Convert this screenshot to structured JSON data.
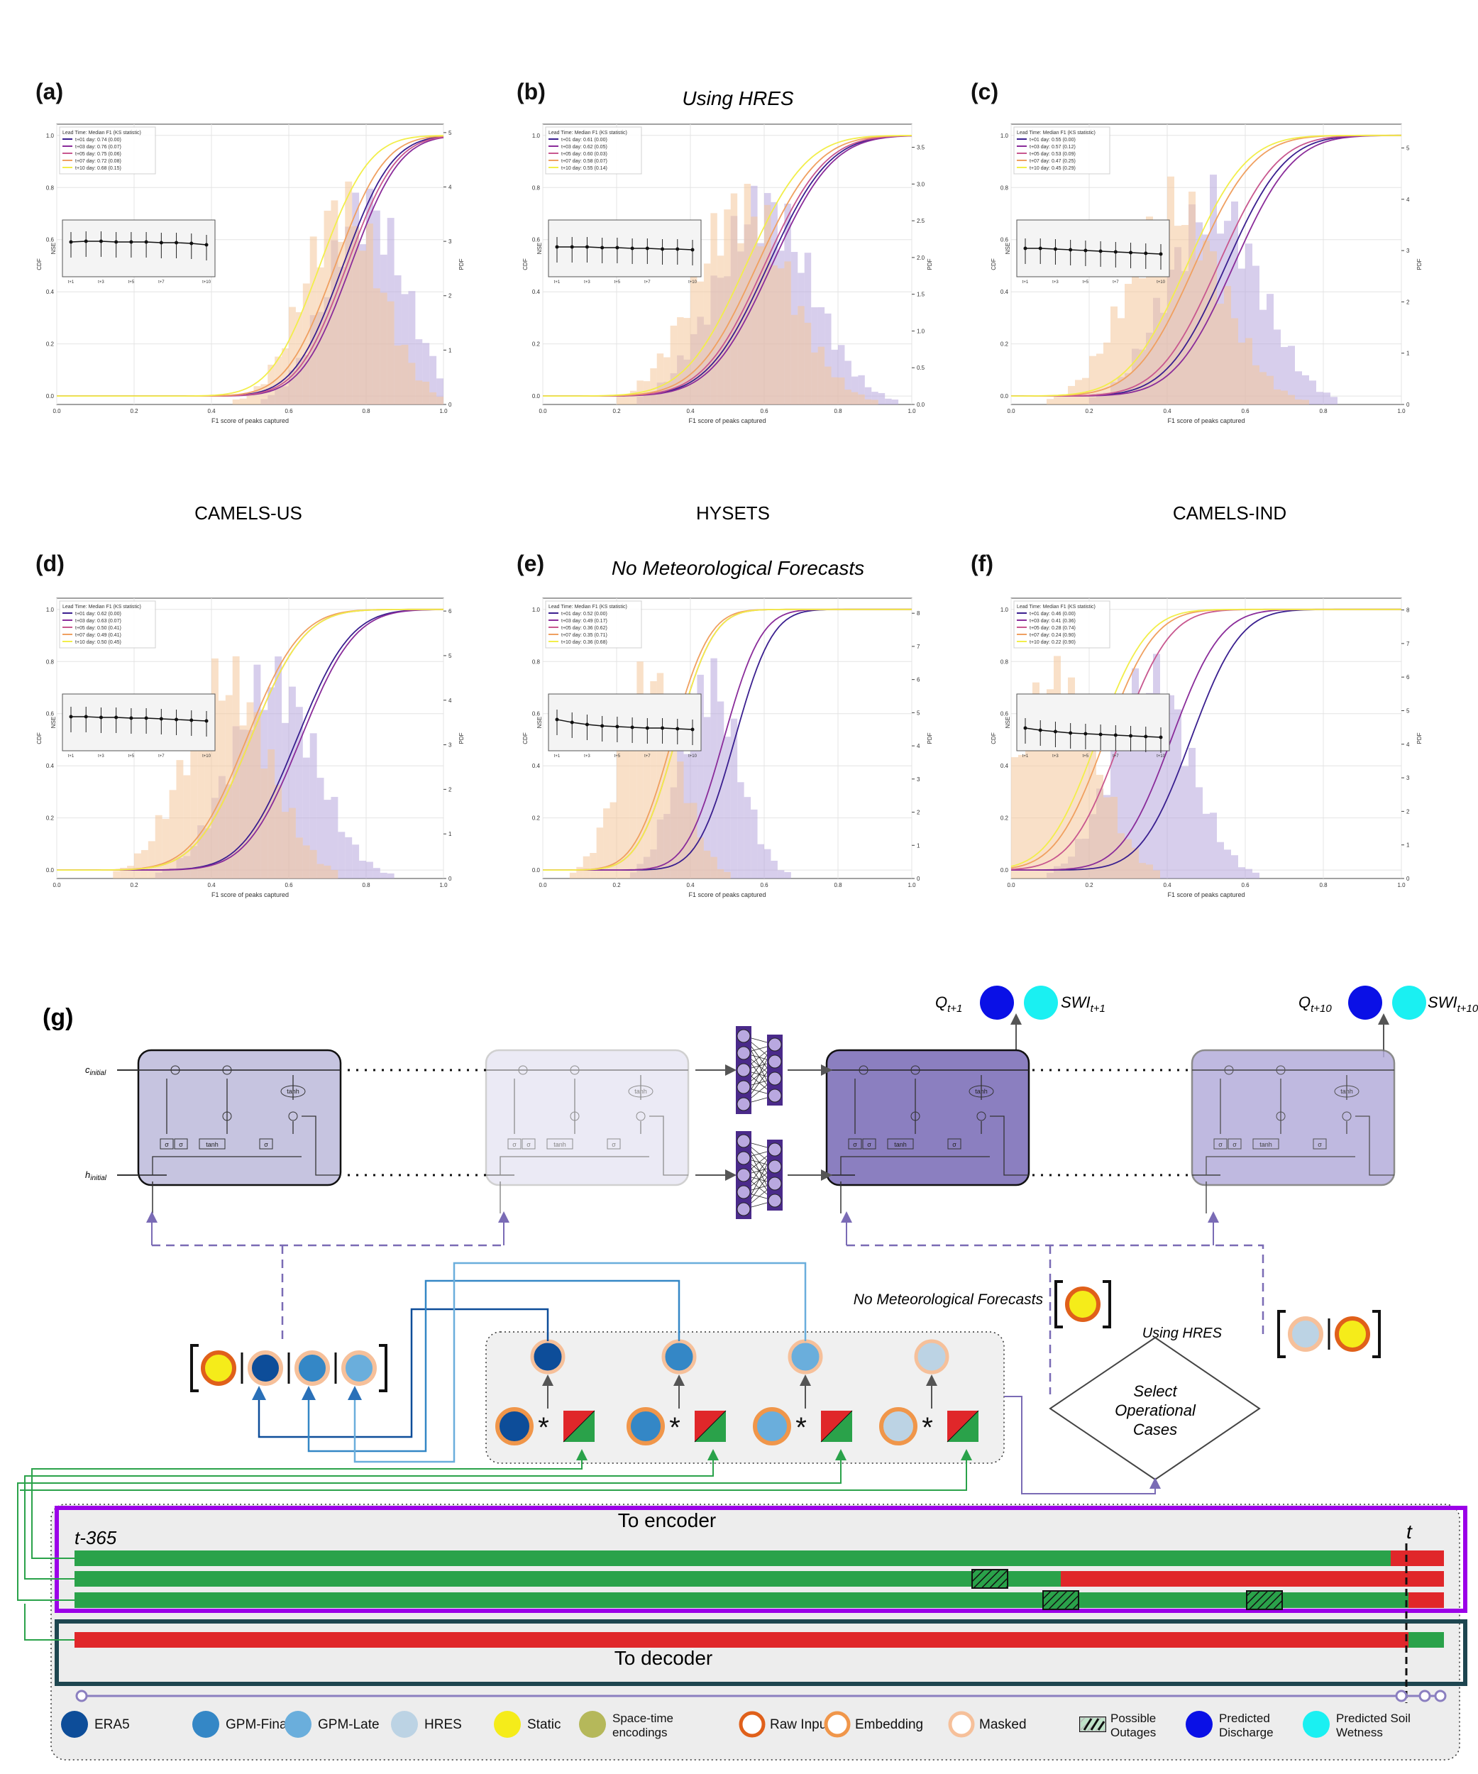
{
  "figure": {
    "section_titles": {
      "row1": "Using HRES",
      "row2": "No Meteorological Forecasts"
    },
    "dataset_labels": [
      "CAMELS-US",
      "HYSETS",
      "CAMELS-IND"
    ],
    "colors": {
      "t01": "#3a1f8f",
      "t03": "#8a2c9a",
      "t05": "#c8578f",
      "t07": "#f0a060",
      "t10": "#f2ee4a",
      "hist_purple": "#b7a6dd",
      "hist_orange": "#f4c79a"
    }
  },
  "chart_data": [
    {
      "panel": "(a)",
      "type": "line",
      "legend_title": "Lead Time: Median F1 (KS statistic)",
      "series": [
        {
          "name": "t+01 day: 0.74 (0.00)",
          "median": 0.74
        },
        {
          "name": "t+03 day: 0.76 (0.07)",
          "median": 0.76
        },
        {
          "name": "t+05 day: 0.75 (0.06)",
          "median": 0.75
        },
        {
          "name": "t+07 day: 0.72 (0.08)",
          "median": 0.72
        },
        {
          "name": "t+10 day: 0.68 (0.15)",
          "median": 0.68
        }
      ],
      "xlabel": "F1 score of peaks captured",
      "ylabel": "CDF",
      "y2label": "PDF",
      "xlim": [
        0,
        1
      ],
      "ylim": [
        0,
        1
      ],
      "x_ticks": [
        "0.0",
        "0.2",
        "0.4",
        "0.6",
        "0.8",
        "1.0"
      ],
      "y_ticks": [
        "0.0",
        "0.2",
        "0.4",
        "0.6",
        "0.8",
        "1.0"
      ],
      "y2_ticks": [
        "0",
        "1",
        "2",
        "3",
        "4",
        "5"
      ],
      "y2_max": 5,
      "hist_center": 0.8,
      "hist_width": 0.1,
      "inset": {
        "ylabel": "NSE",
        "x_ticks": [
          "t+1",
          "t+3",
          "t+5",
          "t+7",
          "t+10"
        ],
        "values": [
          0.67,
          0.68,
          0.68,
          0.67,
          0.67,
          0.67,
          0.66,
          0.66,
          0.65,
          0.63
        ]
      }
    },
    {
      "panel": "(b)",
      "type": "line",
      "legend_title": "Lead Time: Median F1 (KS statistic)",
      "series": [
        {
          "name": "t+01 day: 0.61 (0.00)",
          "median": 0.61
        },
        {
          "name": "t+03 day: 0.62 (0.05)",
          "median": 0.62
        },
        {
          "name": "t+05 day: 0.60 (0.03)",
          "median": 0.6
        },
        {
          "name": "t+07 day: 0.58 (0.07)",
          "median": 0.58
        },
        {
          "name": "t+10 day: 0.55 (0.14)",
          "median": 0.55
        }
      ],
      "xlabel": "F1 score of peaks captured",
      "ylabel": "CDF",
      "y2label": "PDF",
      "xlim": [
        0,
        1
      ],
      "ylim": [
        0,
        1
      ],
      "x_ticks": [
        "0.0",
        "0.2",
        "0.4",
        "0.6",
        "0.8",
        "1.0"
      ],
      "y_ticks": [
        "0.0",
        "0.2",
        "0.4",
        "0.6",
        "0.8",
        "1.0"
      ],
      "y2_ticks": [
        "0.0",
        "0.5",
        "1.0",
        "1.5",
        "2.0",
        "2.5",
        "3.0",
        "3.5"
      ],
      "y2_max": 3.7,
      "hist_center": 0.6,
      "hist_width": 0.13,
      "inset": {
        "ylabel": "NSE",
        "x_ticks": [
          "t+1",
          "t+3",
          "t+5",
          "t+7",
          "t+10"
        ],
        "values": [
          0.6,
          0.6,
          0.6,
          0.59,
          0.59,
          0.58,
          0.58,
          0.57,
          0.57,
          0.56
        ]
      }
    },
    {
      "panel": "(c)",
      "type": "line",
      "legend_title": "Lead Time: Median F1 (KS statistic)",
      "series": [
        {
          "name": "t+01 day: 0.55 (0.00)",
          "median": 0.55
        },
        {
          "name": "t+03 day: 0.57 (0.12)",
          "median": 0.57
        },
        {
          "name": "t+05 day: 0.53 (0.09)",
          "median": 0.53
        },
        {
          "name": "t+07 day: 0.47 (0.25)",
          "median": 0.47
        },
        {
          "name": "t+10 day: 0.45 (0.29)",
          "median": 0.45
        }
      ],
      "xlabel": "F1 score of peaks captured",
      "ylabel": "CDF",
      "y2label": "PDF",
      "xlim": [
        0,
        1
      ],
      "ylim": [
        0,
        1
      ],
      "x_ticks": [
        "0.0",
        "0.2",
        "0.4",
        "0.6",
        "0.8",
        "1.0"
      ],
      "y_ticks": [
        "0.0",
        "0.2",
        "0.4",
        "0.6",
        "0.8",
        "1.0"
      ],
      "y2_ticks": [
        "0",
        "1",
        "2",
        "3",
        "4",
        "5"
      ],
      "y2_max": 5.3,
      "hist_center": 0.52,
      "hist_width": 0.12,
      "inset": {
        "ylabel": "NSE",
        "x_ticks": [
          "t+1",
          "t+3",
          "t+5",
          "t+7",
          "t+10"
        ],
        "values": [
          0.58,
          0.58,
          0.57,
          0.56,
          0.55,
          0.54,
          0.53,
          0.52,
          0.51,
          0.5
        ]
      }
    },
    {
      "panel": "(d)",
      "type": "line",
      "legend_title": "Lead Time: Median F1 (KS statistic)",
      "series": [
        {
          "name": "t+01 day: 0.62 (0.00)",
          "median": 0.62
        },
        {
          "name": "t+03 day: 0.63 (0.07)",
          "median": 0.63
        },
        {
          "name": "t+05 day: 0.50 (0.41)",
          "median": 0.5
        },
        {
          "name": "t+07 day: 0.49 (0.41)",
          "median": 0.49
        },
        {
          "name": "t+10 day: 0.50 (0.45)",
          "median": 0.5
        }
      ],
      "xlabel": "F1 score of peaks captured",
      "ylabel": "CDF",
      "y2label": "PDF",
      "xlim": [
        0,
        1
      ],
      "ylim": [
        0,
        1
      ],
      "x_ticks": [
        "0.0",
        "0.2",
        "0.4",
        "0.6",
        "0.8",
        "1.0"
      ],
      "y_ticks": [
        "0.0",
        "0.2",
        "0.4",
        "0.6",
        "0.8",
        "1.0"
      ],
      "y2_ticks": [
        "0",
        "1",
        "2",
        "3",
        "4",
        "5",
        "6"
      ],
      "y2_max": 6.1,
      "hist_center": 0.56,
      "hist_width": 0.11,
      "inset": {
        "ylabel": "NSE",
        "x_ticks": [
          "t+1",
          "t+3",
          "t+5",
          "t+7",
          "t+10"
        ],
        "values": [
          0.66,
          0.66,
          0.65,
          0.65,
          0.64,
          0.64,
          0.63,
          0.62,
          0.61,
          0.6
        ]
      }
    },
    {
      "panel": "(e)",
      "type": "line",
      "legend_title": "Lead Time: Median F1 (KS statistic)",
      "series": [
        {
          "name": "t+01 day: 0.52 (0.00)",
          "median": 0.52
        },
        {
          "name": "t+03 day: 0.49 (0.17)",
          "median": 0.49
        },
        {
          "name": "t+05 day: 0.36 (0.62)",
          "median": 0.36
        },
        {
          "name": "t+07 day: 0.35 (0.71)",
          "median": 0.35
        },
        {
          "name": "t+10 day: 0.36 (0.68)",
          "median": 0.36
        }
      ],
      "xlabel": "F1 score of peaks captured",
      "ylabel": "CDF",
      "y2label": "PDF",
      "xlim": [
        0,
        1
      ],
      "ylim": [
        0,
        1
      ],
      "x_ticks": [
        "0.0",
        "0.2",
        "0.4",
        "0.6",
        "0.8",
        "1.0"
      ],
      "y_ticks": [
        "0.0",
        "0.2",
        "0.4",
        "0.6",
        "0.8",
        "1.0"
      ],
      "y2_ticks": [
        "0",
        "1",
        "2",
        "3",
        "4",
        "5",
        "6",
        "7",
        "8"
      ],
      "y2_max": 8.2,
      "hist_center": 0.45,
      "hist_width": 0.08,
      "inset": {
        "ylabel": "NSE",
        "x_ticks": [
          "t+1",
          "t+3",
          "t+5",
          "t+7",
          "t+10"
        ],
        "values": [
          0.62,
          0.58,
          0.55,
          0.53,
          0.52,
          0.51,
          0.5,
          0.5,
          0.49,
          0.48
        ]
      }
    },
    {
      "panel": "(f)",
      "type": "line",
      "legend_title": "Lead Time: Median F1 (KS statistic)",
      "series": [
        {
          "name": "t+01 day: 0.46 (0.00)",
          "median": 0.46
        },
        {
          "name": "t+03 day: 0.41 (0.36)",
          "median": 0.41
        },
        {
          "name": "t+05 day: 0.28 (0.74)",
          "median": 0.28
        },
        {
          "name": "t+07 day: 0.24 (0.90)",
          "median": 0.24
        },
        {
          "name": "t+10 day: 0.22 (0.90)",
          "median": 0.22
        }
      ],
      "xlabel": "F1 score of peaks captured",
      "ylabel": "CDF",
      "y2label": "PDF",
      "xlim": [
        0,
        1
      ],
      "ylim": [
        0,
        1
      ],
      "x_ticks": [
        "0.0",
        "0.2",
        "0.4",
        "0.6",
        "0.8",
        "1.0"
      ],
      "y_ticks": [
        "0.0",
        "0.2",
        "0.4",
        "0.6",
        "0.8",
        "1.0"
      ],
      "y2_ticks": [
        "0",
        "1",
        "2",
        "3",
        "4",
        "5",
        "6",
        "7",
        "8"
      ],
      "y2_max": 8.1,
      "hist_center": 0.36,
      "hist_width": 0.1,
      "inset": {
        "ylabel": "NSE",
        "x_ticks": [
          "t+1",
          "t+3",
          "t+5",
          "t+7",
          "t+10"
        ],
        "values": [
          0.5,
          0.47,
          0.45,
          0.43,
          0.42,
          0.41,
          0.4,
          0.39,
          0.38,
          0.37
        ]
      }
    }
  ],
  "diagram": {
    "panel_label": "(g)",
    "c_initial": "c_initial",
    "h_initial": "h_initial",
    "tanh": "tanh",
    "sigma": "σ",
    "q_t1": "Q_t+1",
    "swi_t1": "SWI_t+1",
    "q_t10": "Q_t+10",
    "swi_t10": "SWI_t+10",
    "no_met": "No Meteorological Forecasts",
    "using_hres": "Using HRES",
    "select_cases": [
      "Select",
      "Operational",
      "Cases"
    ],
    "to_encoder": "To encoder",
    "to_decoder": "To decoder",
    "t_minus": "t-365",
    "t_now": "t",
    "legend": [
      {
        "label": "ERA5",
        "color": "#0d4d99"
      },
      {
        "label": "GPM-Final",
        "color": "#3487c6"
      },
      {
        "label": "GPM-Late",
        "color": "#6aaedc"
      },
      {
        "label": "HRES",
        "color": "#bcd3e4"
      },
      {
        "label": "Static",
        "color": "#f5ec1a"
      },
      {
        "label": "Space-time encodings",
        "color": "#b5b85a"
      },
      {
        "label": "Raw Input",
        "color": "#e0601a"
      },
      {
        "label": "Embedding",
        "color": "#f0964a"
      },
      {
        "label": "Masked",
        "color": "#f6c09a"
      },
      {
        "label": "Possible Outages",
        "color": "#000000"
      },
      {
        "label": "Predicted Discharge",
        "color": "#0a10e6"
      },
      {
        "label": "Predicted Soil Wetness",
        "color": "#1af0f2"
      }
    ]
  }
}
